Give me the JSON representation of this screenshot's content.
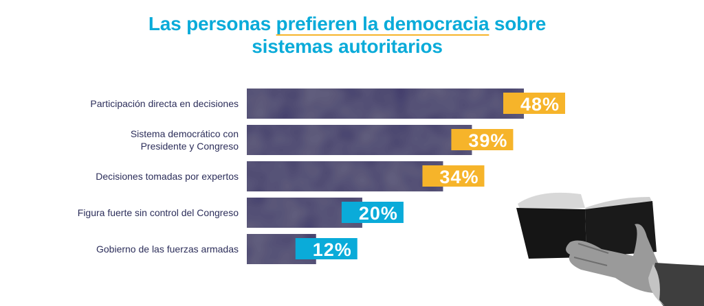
{
  "title": {
    "part1": "Las personas ",
    "highlight": "prefieren la democracia",
    "part2": " sobre",
    "line2": "sistemas autoritarios"
  },
  "colors": {
    "title": "#0aabd9",
    "underline": "#f6b42a",
    "bar": "#3f3a6b",
    "label_high": "#f6b42a",
    "label_low": "#0aabd9",
    "category_text": "#2c2e5a"
  },
  "illustration": {
    "icon": "hand-holding-book-icon"
  },
  "chart_data": {
    "type": "bar",
    "orientation": "horizontal",
    "title": "Las personas prefieren la democracia sobre sistemas autoritarios",
    "xlabel": "",
    "ylabel": "",
    "xlim": [
      0,
      60
    ],
    "grid": false,
    "categories": [
      [
        "Participación directa en decisiones"
      ],
      [
        "Sistema democrático con",
        "Presidente y Congreso"
      ],
      [
        "Decisiones tomadas por expertos"
      ],
      [
        "Figura fuerte sin control del Congreso"
      ],
      [
        "Gobierno de las fuerzas armadas"
      ]
    ],
    "values": [
      48,
      39,
      34,
      20,
      12
    ],
    "value_labels": [
      "48%",
      "39%",
      "34%",
      "20%",
      "12%"
    ],
    "label_colors": [
      "#f6b42a",
      "#f6b42a",
      "#f6b42a",
      "#0aabd9",
      "#0aabd9"
    ]
  }
}
